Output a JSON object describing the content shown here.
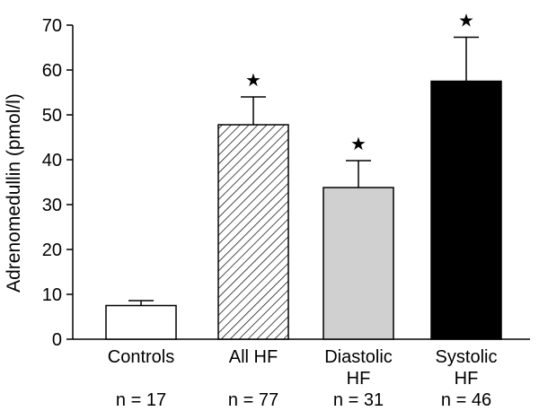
{
  "chart_data": {
    "type": "bar",
    "title": "",
    "xlabel": "",
    "ylabel": "Adrenomedullin (pmol/l)",
    "ylim": [
      0,
      70
    ],
    "yticks": [
      0,
      10,
      20,
      30,
      40,
      50,
      60,
      70
    ],
    "categories": [
      [
        "Controls"
      ],
      [
        "All HF"
      ],
      [
        "Diastolic",
        "HF"
      ],
      [
        "Systolic",
        "HF"
      ]
    ],
    "values": [
      7.5,
      47.8,
      33.8,
      57.5
    ],
    "error_upper": [
      8.6,
      54.0,
      39.8,
      67.3
    ],
    "n_labels": [
      "n = 17",
      "n = 77",
      "n = 31",
      "n = 46"
    ],
    "significance_marker": "★",
    "significant": [
      false,
      true,
      true,
      true
    ],
    "fills": [
      "white",
      "hatched",
      "#d0d0d0",
      "#000000"
    ]
  }
}
